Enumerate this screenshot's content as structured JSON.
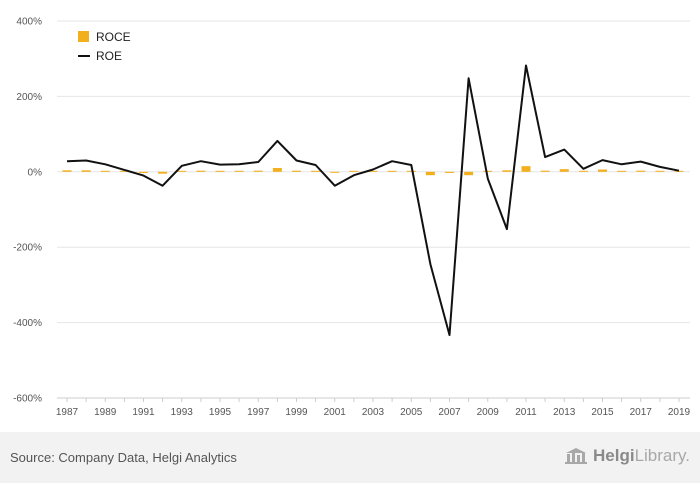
{
  "chart_data": {
    "type": "bar+line",
    "x": [
      1987,
      1988,
      1989,
      1990,
      1991,
      1992,
      1993,
      1994,
      1995,
      1996,
      1997,
      1998,
      1999,
      2000,
      2001,
      2002,
      2003,
      2004,
      2005,
      2006,
      2007,
      2008,
      2009,
      2010,
      2011,
      2012,
      2013,
      2014,
      2015,
      2016,
      2017,
      2018,
      2019
    ],
    "x_tick_labels": [
      "1987",
      "1989",
      "1991",
      "1993",
      "1995",
      "1997",
      "1999",
      "2001",
      "2003",
      "2005",
      "2007",
      "2009",
      "2011",
      "2013",
      "2015",
      "2017",
      "2019"
    ],
    "y_ticks": [
      400,
      200,
      0,
      -200,
      -400,
      -600
    ],
    "y_tick_labels": [
      "400%",
      "200%",
      "0%",
      "-200%",
      "-400%",
      "-600%"
    ],
    "ylim": [
      -600,
      400
    ],
    "grid": true,
    "legend_position": "top-left",
    "series": [
      {
        "name": "ROCE",
        "type": "bar",
        "color": "#f2b01e",
        "values": [
          4,
          4,
          2,
          0,
          -3,
          -5,
          1,
          3,
          2,
          2,
          3,
          10,
          3,
          1,
          -2,
          1,
          2,
          1,
          1,
          -9,
          -3,
          -9,
          1,
          4,
          15,
          3,
          7,
          1,
          6,
          2,
          3,
          2,
          1
        ]
      },
      {
        "name": "ROE",
        "type": "line",
        "color": "#111111",
        "values": [
          28,
          30,
          20,
          5,
          -10,
          -37,
          16,
          28,
          19,
          20,
          26,
          82,
          30,
          18,
          -37,
          -9,
          6,
          28,
          18,
          -245,
          -433,
          248,
          -18,
          -152,
          282,
          39,
          59,
          8,
          31,
          20,
          27,
          13,
          3
        ]
      }
    ]
  },
  "footer": {
    "source": "Source: Company Data, Helgi Analytics",
    "brand_name": "Helgi",
    "brand_suffix": "Library."
  },
  "icons": {
    "brand": "library-building-icon"
  }
}
